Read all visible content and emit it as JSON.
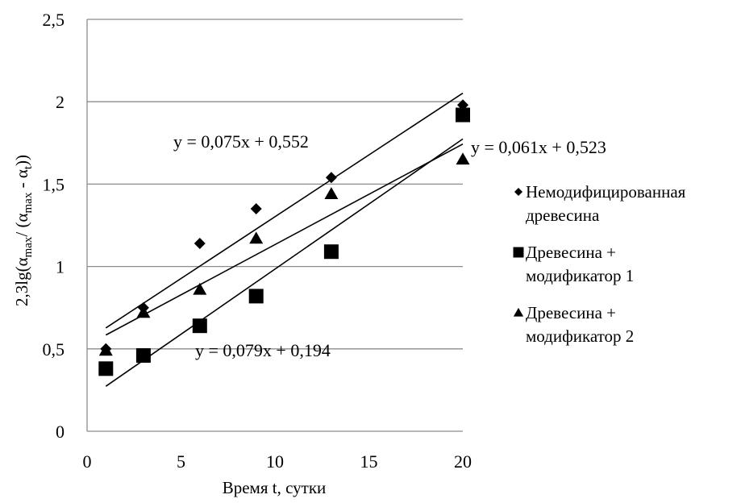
{
  "chart_data": {
    "type": "scatter",
    "xlabel": "Время t, сутки",
    "ylabel": {
      "prefix": "2,3lg(α",
      "sub1": "max",
      "mid": "/ (α",
      "sub2": "max",
      "mid2": " - α",
      "sub3": "t",
      "suffix": "))"
    },
    "xlim": [
      0,
      20
    ],
    "ylim": [
      0,
      2.5
    ],
    "x_ticks": [
      0,
      5,
      10,
      15,
      20
    ],
    "x_tick_labels": [
      "0",
      "5",
      "10",
      "15",
      "20"
    ],
    "y_ticks": [
      0,
      0.5,
      1,
      1.5,
      2,
      2.5
    ],
    "y_tick_labels": [
      "0",
      "0,5",
      "1",
      "1,5",
      "2",
      "2,5"
    ],
    "grid": "horizontal",
    "legend_placement": "right",
    "series": [
      {
        "name_lines": [
          "Немодифицированная",
          "древесина"
        ],
        "marker": "diamond",
        "color": "#000000",
        "x": [
          1,
          3,
          6,
          9,
          13,
          20
        ],
        "y": [
          0.5,
          0.75,
          1.14,
          1.35,
          1.54,
          1.98
        ],
        "trendline": {
          "slope": 0.075,
          "intercept": 0.552,
          "equation": "y = 0,075x + 0,552"
        }
      },
      {
        "name_lines": [
          "Древесина +",
          "модификатор 1"
        ],
        "marker": "square",
        "color": "#000000",
        "x": [
          1,
          3,
          6,
          9,
          13,
          20
        ],
        "y": [
          0.38,
          0.46,
          0.64,
          0.82,
          1.09,
          1.92
        ],
        "trendline": {
          "slope": 0.079,
          "intercept": 0.194,
          "equation": "y = 0,079x + 0,194"
        }
      },
      {
        "name_lines": [
          "Древесина +",
          "модификатор 2"
        ],
        "marker": "triangle",
        "color": "#000000",
        "x": [
          1,
          3,
          6,
          9,
          13,
          20
        ],
        "y": [
          0.49,
          0.72,
          0.86,
          1.17,
          1.44,
          1.65
        ],
        "trendline": {
          "slope": 0.061,
          "intercept": 0.523,
          "equation": "y = 0,061x + 0,523"
        }
      }
    ]
  }
}
